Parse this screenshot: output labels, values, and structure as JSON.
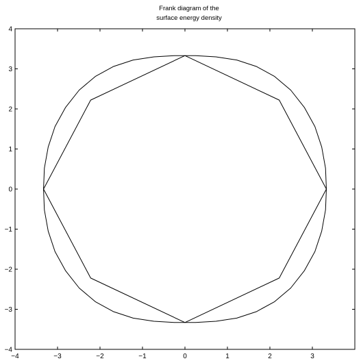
{
  "chart_data": {
    "type": "line",
    "title": "Frank diagram of the",
    "subtitle": "surface energy density",
    "xlabel": "",
    "ylabel": "",
    "xlim": [
      -4,
      4
    ],
    "ylim": [
      -4,
      4
    ],
    "xticks": [
      -4,
      -3,
      -2,
      -1,
      0,
      1,
      2,
      3
    ],
    "yticks": [
      -4,
      -3,
      -2,
      -1,
      0,
      1,
      2,
      3,
      4
    ],
    "grid": false,
    "legend": "none",
    "colors": {
      "line": "#000000",
      "axes": "#000000",
      "background": "#ffffff"
    },
    "series": [
      {
        "x": [
          3.33,
          2.57,
          2.22,
          1.85,
          0.98,
          0,
          -0.98,
          -1.85,
          -2.22,
          -2.57,
          -3.33,
          -3.17,
          -2.78,
          -2.57,
          -2.22,
          -1.72,
          -0.98,
          0,
          0.98,
          1.72,
          2.22,
          2.57,
          2.78,
          3.17,
          3.33,
          3.17,
          2.78,
          2.57,
          2.22,
          1.85,
          0.98,
          0,
          -0.98,
          -1.85,
          -2.22,
          -2.57,
          -2.78,
          -3.17,
          -3.33,
          -3.17,
          -2.78,
          -2.57,
          -2.22,
          -1.72,
          -0.98,
          0,
          0.98,
          1.72,
          2.22,
          2.57,
          2.78,
          3.17,
          3.33
        ],
        "y": [
          0,
          2.57,
          2.22,
          1.85,
          0.98,
          0,
          0.98,
          1.85,
          2.22,
          2.57,
          0,
          0,
          0,
          0,
          0,
          0,
          0,
          0,
          0,
          0,
          0,
          0,
          0,
          0,
          0,
          0,
          0,
          0,
          0,
          0,
          0,
          0,
          0,
          0,
          0,
          0,
          0,
          0,
          0,
          0,
          0,
          0,
          0,
          0,
          0,
          0,
          0,
          0,
          0,
          0,
          0,
          0,
          0
        ]
      }
    ],
    "curve": {
      "x": [
        3.33,
        3.31,
        3.22,
        3.06,
        2.81,
        2.49,
        2.11,
        1.68,
        1.22,
        0.73,
        0.25,
        0,
        -0.25,
        -0.73,
        -1.22,
        -1.68,
        -2.11,
        -2.49,
        -2.81,
        -3.06,
        -3.22,
        -3.31,
        -3.33,
        -3.31,
        -3.22,
        -3.06,
        -2.81,
        -2.49,
        -2.11,
        -1.68,
        -1.22,
        -0.73,
        -0.25,
        0,
        0.25,
        0.73,
        1.22,
        1.68,
        2.11,
        2.49,
        2.81,
        3.06,
        3.22,
        3.31,
        3.33
      ],
      "y": [
        0,
        0.52,
        1.05,
        1.56,
        2.04,
        2.47,
        2.81,
        3.06,
        3.22,
        3.3,
        3.33,
        3.33,
        3.33,
        3.3,
        3.22,
        3.06,
        2.81,
        2.47,
        2.04,
        1.56,
        1.05,
        0.52,
        0,
        -0.52,
        -1.05,
        -1.56,
        -2.04,
        -2.47,
        -2.81,
        -3.06,
        -3.22,
        -3.3,
        -3.33,
        -3.33,
        -3.33,
        -3.3,
        -3.22,
        -3.06,
        -2.81,
        -2.47,
        -2.04,
        -1.56,
        -1.05,
        -0.52,
        0
      ]
    },
    "polygon": {
      "x": [
        3.33,
        2.22,
        0,
        -2.22,
        -3.33,
        -2.22,
        0,
        2.22,
        3.33
      ],
      "y": [
        0,
        2.22,
        3.33,
        2.22,
        0,
        -2.22,
        -3.33,
        -2.22,
        0
      ]
    }
  }
}
